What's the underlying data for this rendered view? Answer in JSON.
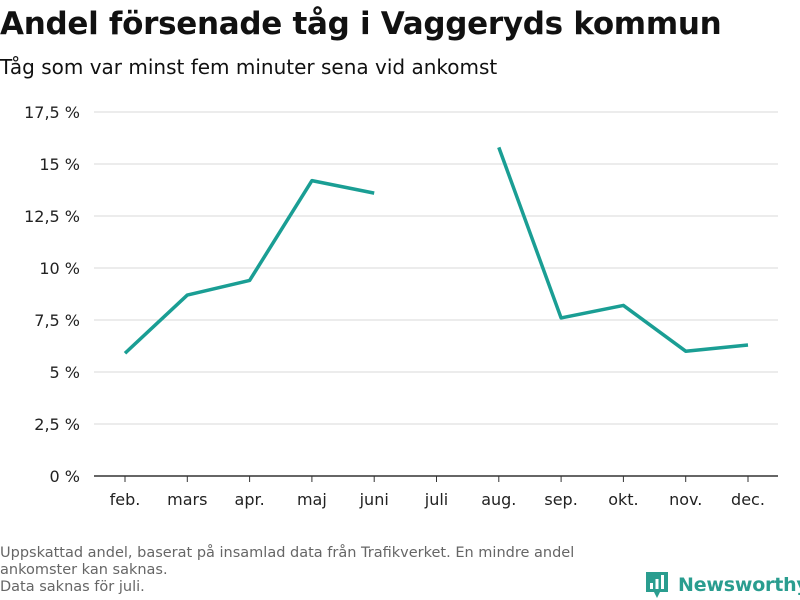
{
  "header": {
    "title": "Andel försenade tåg i Vaggeryds kommun",
    "subtitle": "Tåg som var minst fem minuter sena vid ankomst"
  },
  "footer": {
    "note_lines": [
      "Uppskattad andel, baserat på insamlad data från Trafikverket. En mindre andel",
      "ankomster kan saknas.",
      "Data saknas för juli."
    ]
  },
  "brand": {
    "name": "Newsworthy",
    "logo_icon": "bar-chart-badge-icon"
  },
  "colors": {
    "line": "#1a9e94",
    "grid": "#d9d9d9",
    "axis": "#333333",
    "brand": "#2a9d8f"
  },
  "chart_data": {
    "type": "line",
    "categories": [
      "feb.",
      "mars",
      "apr.",
      "maj",
      "juni",
      "juli",
      "aug.",
      "sep.",
      "okt.",
      "nov.",
      "dec."
    ],
    "series": [
      {
        "values": [
          5.9,
          8.7,
          9.4,
          14.2,
          13.6,
          null,
          15.8,
          7.6,
          8.2,
          6.0,
          6.3
        ]
      }
    ],
    "y_ticks": [
      0,
      2.5,
      5,
      7.5,
      10,
      12.5,
      15,
      17.5
    ],
    "y_tick_labels": [
      "0 %",
      "2,5 %",
      "5 %",
      "7,5 %",
      "10 %",
      "12,5 %",
      "15 %",
      "17,5 %"
    ],
    "ylim": [
      0,
      17.5
    ],
    "grid": true,
    "legend": "none"
  }
}
